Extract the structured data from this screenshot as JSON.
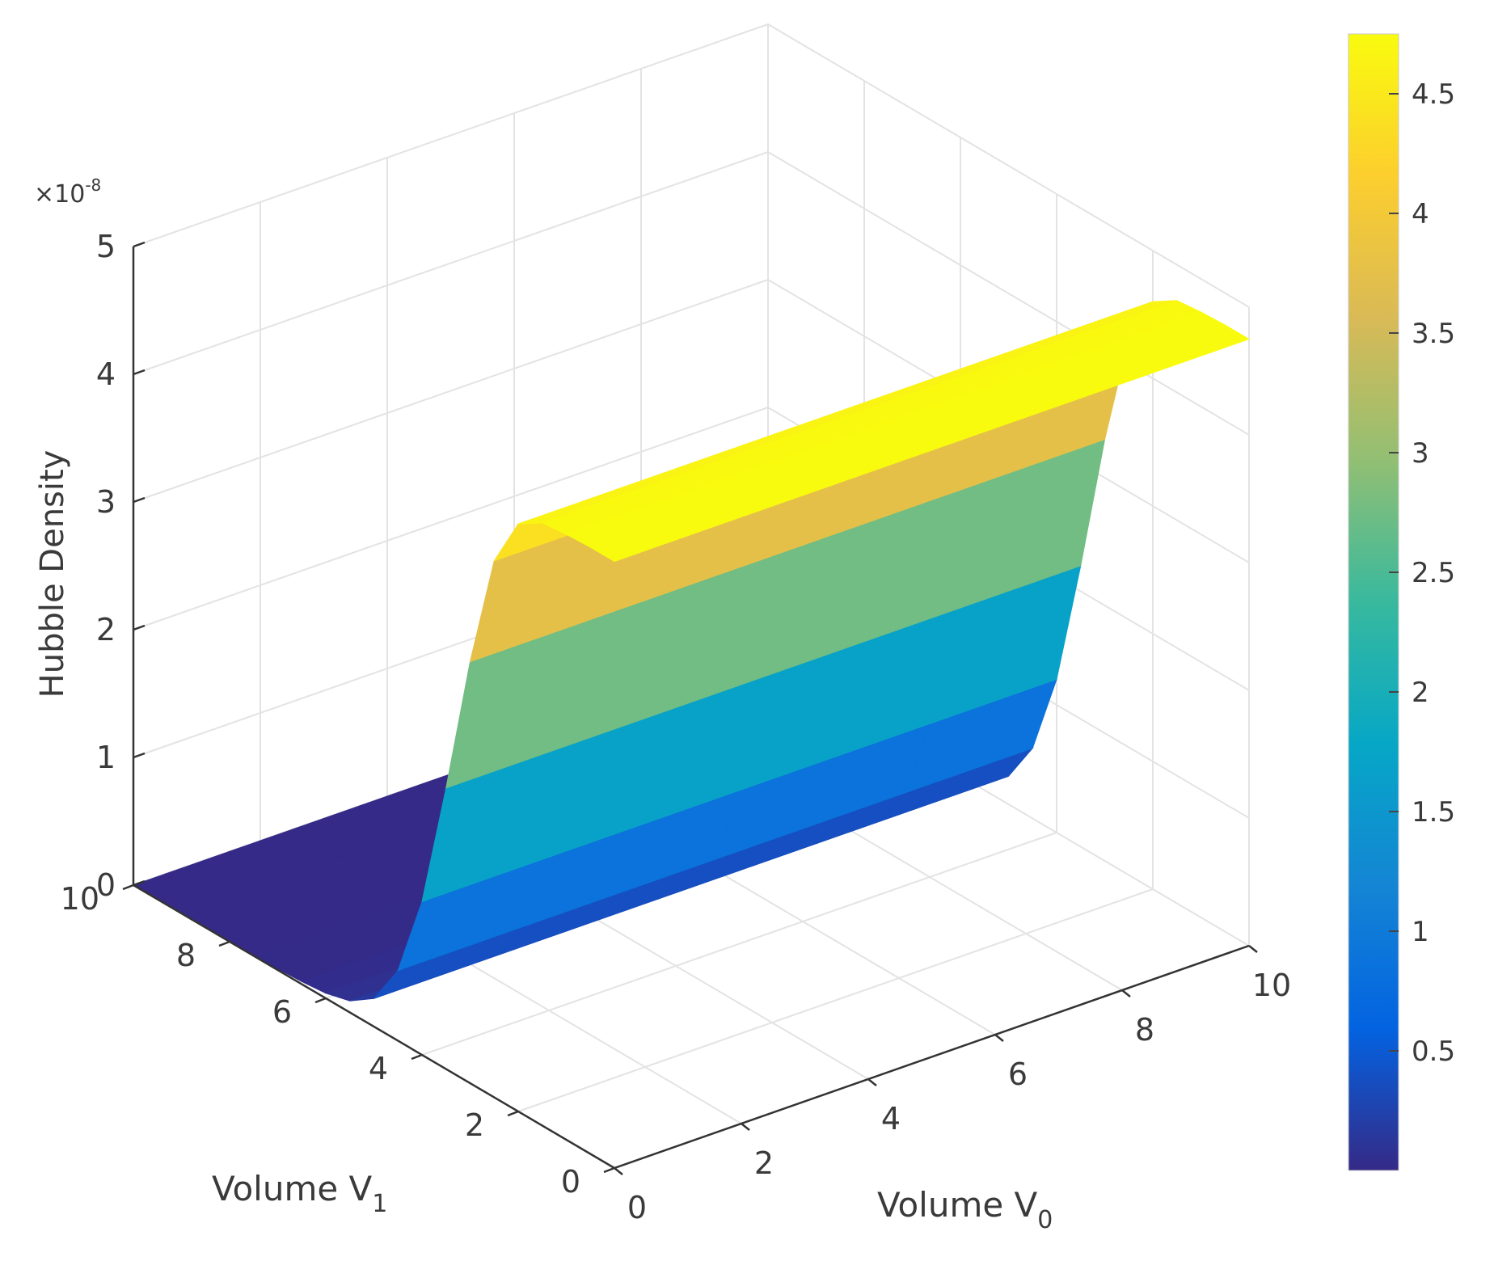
{
  "chart_data": {
    "type": "surface",
    "title": "",
    "xlabel": "Volume V",
    "xlabel_sub": "0",
    "ylabel": "Volume V",
    "ylabel_sub": "1",
    "zlabel": "Hubble Density",
    "zscale_label": "×10",
    "zscale_exp": "-8",
    "xlim": [
      0,
      10
    ],
    "ylim": [
      0,
      10
    ],
    "zlim": [
      0,
      5
    ],
    "x_ticks": [
      "0",
      "2",
      "4",
      "6",
      "8",
      "10"
    ],
    "y_ticks": [
      "0",
      "2",
      "4",
      "6",
      "8",
      "10"
    ],
    "z_ticks": [
      "0",
      "1",
      "2",
      "3",
      "4",
      "5"
    ],
    "grid": true,
    "colormap": "parula",
    "colorbar": {
      "min": 0,
      "max": 4.75,
      "ticks": [
        "0.5",
        "1",
        "1.5",
        "2",
        "2.5",
        "3",
        "3.5",
        "4",
        "4.5"
      ]
    },
    "surface_profile": {
      "description_axis": "V1",
      "v1": [
        0,
        0.5,
        1,
        1.5,
        2,
        2.5,
        3,
        3.5,
        4,
        4.5,
        5,
        5.5,
        6,
        6.5,
        7,
        7.5,
        8,
        8.5,
        9,
        9.5,
        10
      ],
      "z": [
        4.75,
        4.75,
        4.74,
        4.72,
        4.6,
        4.2,
        3.3,
        2.2,
        1.2,
        0.55,
        0.22,
        0.09,
        0.04,
        0.02,
        0.01,
        0.005,
        0.003,
        0.002,
        0.001,
        0.0005,
        0
      ]
    },
    "colors": {
      "parula_stops": [
        "#352a87",
        "#0363e1",
        "#1485d4",
        "#06a7c6",
        "#38b99e",
        "#92bf73",
        "#d9ba56",
        "#fcce2e",
        "#f9fb0e"
      ]
    }
  }
}
